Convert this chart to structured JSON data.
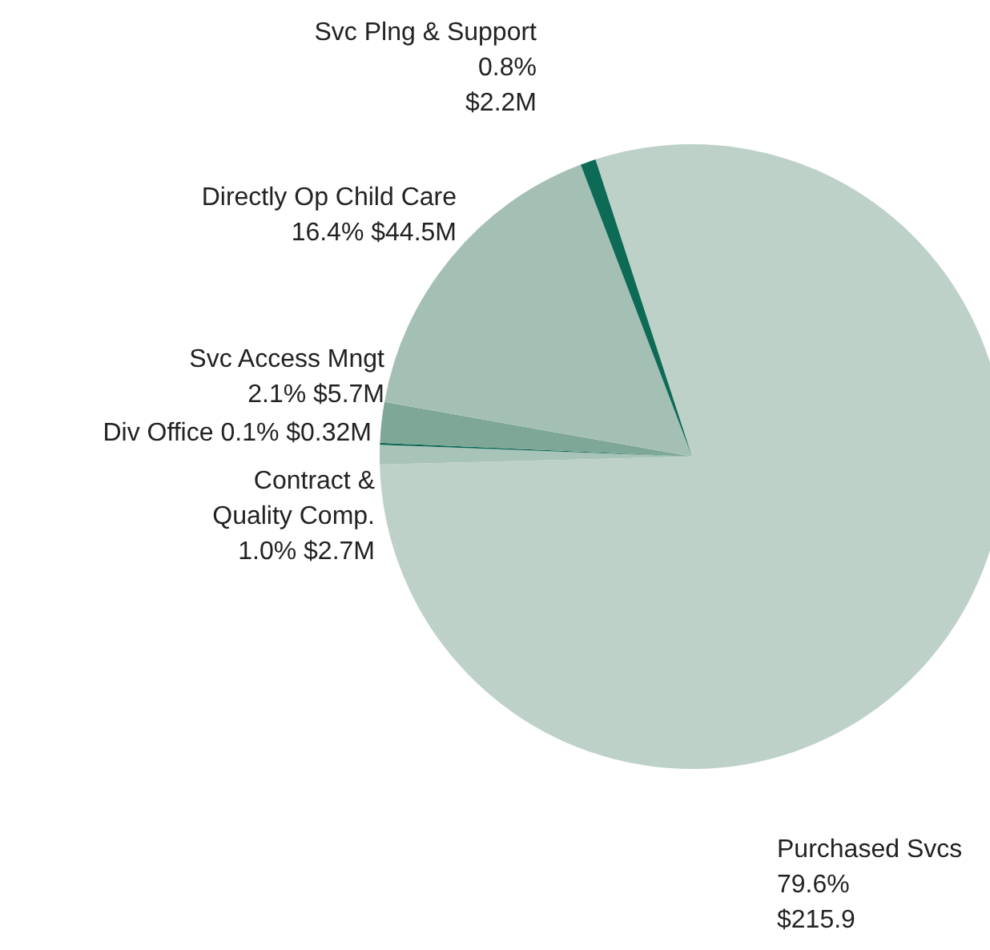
{
  "chart_data": {
    "type": "pie",
    "categories": [
      "Purchased Svcs",
      "Contract & Quality Comp.",
      "Div Office",
      "Svc Access Mngt",
      "Directly Op Child Care",
      "Svc Plng & Support"
    ],
    "values": [
      79.6,
      1.0,
      0.1,
      2.1,
      16.4,
      0.8
    ],
    "value_labels": [
      "79.6% $215.9",
      "1.0% $2.7M",
      "0.1% $0.32M",
      "2.1% $5.7M",
      "16.4% $44.5M",
      "0.8% $2.2M"
    ],
    "colors": [
      "#bdd1c9",
      "#a8c3b8",
      "#0b6652",
      "#7ea797",
      "#a4bfb4",
      "#0d6a55"
    ],
    "legend": false
  }
}
